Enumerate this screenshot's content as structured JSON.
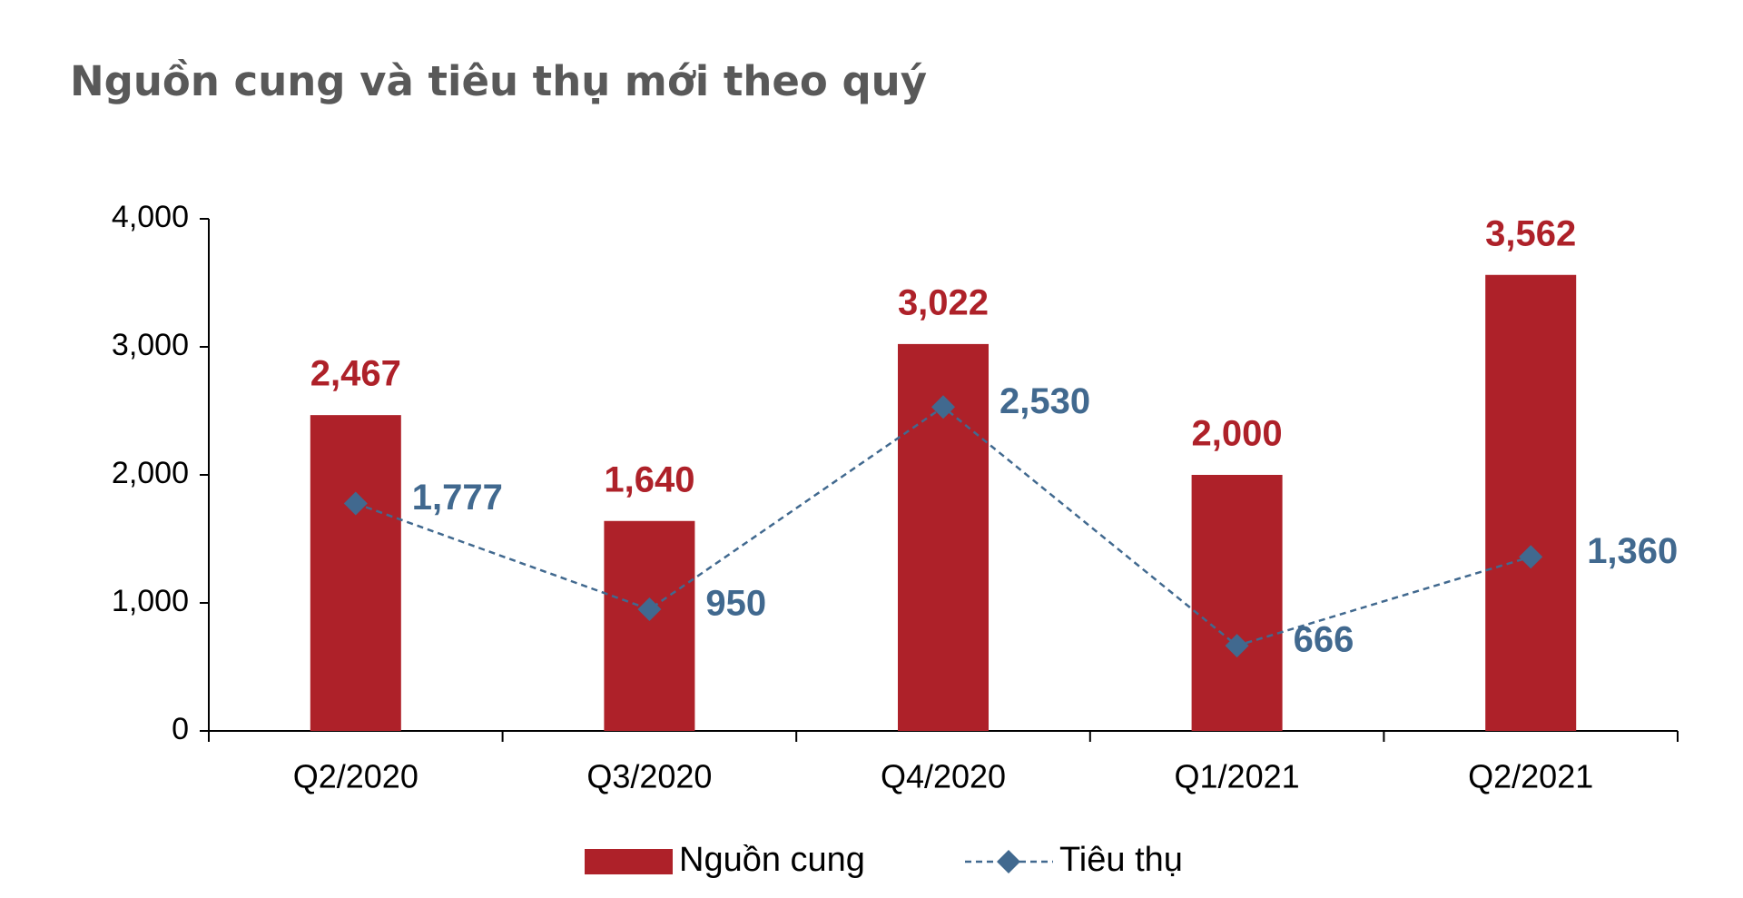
{
  "chart_data": {
    "type": "bar",
    "title": "Nguồn cung và tiêu thụ mới theo quý",
    "categories": [
      "Q2/2020",
      "Q3/2020",
      "Q4/2020",
      "Q1/2021",
      "Q2/2021"
    ],
    "series": [
      {
        "name": "Nguồn cung",
        "type": "bar",
        "color": "#ae2129",
        "values": [
          2467,
          1640,
          3022,
          2000,
          3562
        ],
        "value_labels": [
          "2,467",
          "1,640",
          "3,022",
          "2,000",
          "3,562"
        ]
      },
      {
        "name": "Tiêu thụ",
        "type": "line",
        "color": "#41698f",
        "values": [
          1777,
          950,
          2530,
          666,
          1360
        ],
        "value_labels": [
          "1,777",
          "950",
          "2,530",
          "666",
          "1,360"
        ]
      }
    ],
    "ylim": [
      0,
      4000
    ],
    "yticks": [
      0,
      {
        "value": 1000,
        "label": "1,000"
      },
      {
        "value": 2000,
        "label": "2,000"
      },
      {
        "value": 3000,
        "label": "3,000"
      },
      {
        "value": 4000,
        "label": "4,000"
      }
    ],
    "grid": false,
    "legend": "bottom"
  }
}
